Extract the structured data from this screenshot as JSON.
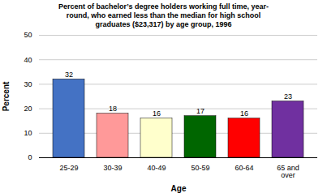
{
  "chart_data": {
    "type": "bar",
    "title": "Percent of bachelor’s degree holders working full time, year-\nround, who earned less than the median for high school\ngraduates ($23,317) by age group, 1996",
    "categories": [
      "25-29",
      "30-39",
      "40-49",
      "50-59",
      "60-64",
      "65 and\nover"
    ],
    "values": [
      32,
      18,
      16,
      17,
      16,
      23
    ],
    "colors": [
      "#4472C4",
      "#FF9999",
      "#FFFFCC",
      "#006600",
      "#FF0000",
      "#7030A0"
    ],
    "xlabel": "Age",
    "ylabel": "Percent",
    "ylim": [
      0,
      50
    ],
    "yticks": [
      0,
      10,
      20,
      30,
      40,
      50
    ],
    "grid": true,
    "data_labels": true
  }
}
